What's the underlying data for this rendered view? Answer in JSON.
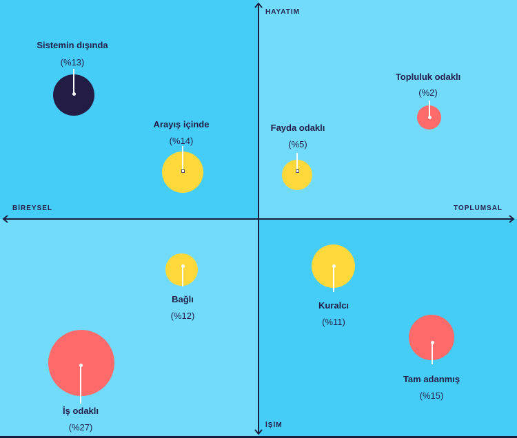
{
  "axes": {
    "top": "HAYATIM",
    "bottom": "İŞİM",
    "left": "BİREYSEL",
    "right": "TOPLUMSAL"
  },
  "segments": [
    {
      "id": "sistemin-disinda",
      "name": "Sistemin dışında",
      "percent": "(%13)",
      "value": 13,
      "color": "#231d45"
    },
    {
      "id": "arayis-icinde",
      "name": "Arayış içinde",
      "percent": "(%14)",
      "value": 14,
      "color": "#ffd93b"
    },
    {
      "id": "fayda-odakli",
      "name": "Fayda odaklı",
      "percent": "(%5)",
      "value": 5,
      "color": "#ffd93b"
    },
    {
      "id": "topluluk-odakli",
      "name": "Topluluk odaklı",
      "percent": "(%2)",
      "value": 2,
      "color": "#ff6b6b"
    },
    {
      "id": "bagli",
      "name": "Bağlı",
      "percent": "(%12)",
      "value": 12,
      "color": "#ffd93b"
    },
    {
      "id": "kuralci",
      "name": "Kuralcı",
      "percent": "(%11)",
      "value": 11,
      "color": "#ffd93b"
    },
    {
      "id": "is-odakli",
      "name": "İş odaklı",
      "percent": "(%27)",
      "value": 27,
      "color": "#ff6b6b"
    },
    {
      "id": "tam-adanmis",
      "name": "Tam adanmış",
      "percent": "(%15)",
      "value": 15,
      "color": "#ff6b6b"
    }
  ]
}
